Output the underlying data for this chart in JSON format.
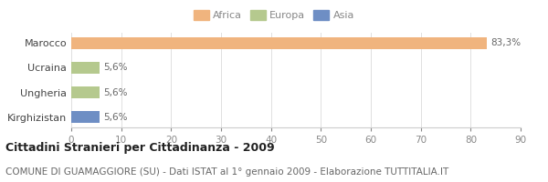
{
  "categories": [
    "Kirghizistan",
    "Ungheria",
    "Ucraina",
    "Marocco"
  ],
  "values": [
    5.6,
    5.6,
    5.6,
    83.3
  ],
  "colors": [
    "#6e8ec4",
    "#b5c98e",
    "#b5c98e",
    "#f0b47e"
  ],
  "labels": [
    "5,6%",
    "5,6%",
    "5,6%",
    "83,3%"
  ],
  "xlim": [
    0,
    90
  ],
  "xticks": [
    0,
    10,
    20,
    30,
    40,
    50,
    60,
    70,
    80,
    90
  ],
  "legend": [
    {
      "label": "Africa",
      "color": "#f0b47e"
    },
    {
      "label": "Europa",
      "color": "#b5c98e"
    },
    {
      "label": "Asia",
      "color": "#6e8ec4"
    }
  ],
  "title": "Cittadini Stranieri per Cittadinanza - 2009",
  "subtitle": "COMUNE DI GUAMAGGIORE (SU) - Dati ISTAT al 1° gennaio 2009 - Elaborazione TUTTITALIA.IT",
  "bg_color": "#ffffff",
  "bar_height": 0.5,
  "label_fontsize": 7.5,
  "title_fontsize": 9,
  "subtitle_fontsize": 7.5,
  "ytick_fontsize": 8,
  "xtick_fontsize": 7.5
}
